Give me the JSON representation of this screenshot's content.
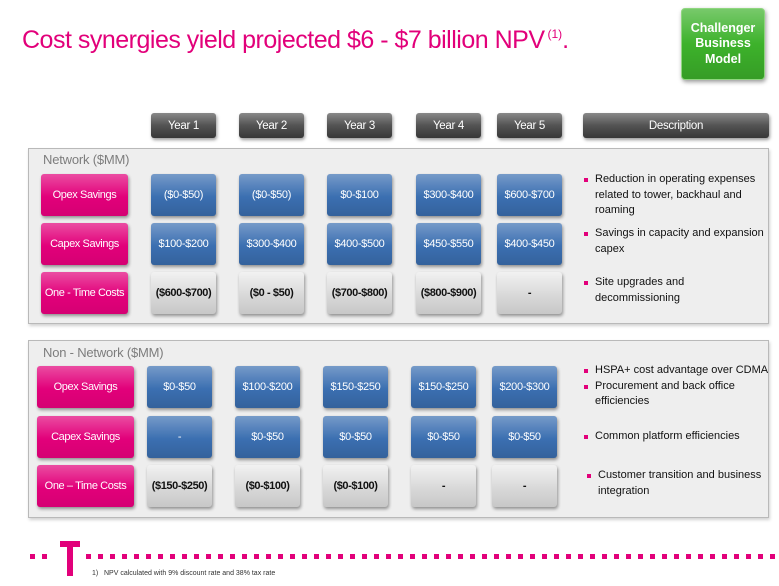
{
  "title": {
    "text": "Cost synergies yield projected $6 - $7 billion NPV",
    "superscript": "(1)",
    "suffix": "."
  },
  "badge": {
    "label": "Challenger Business Model"
  },
  "header": {
    "years": [
      "Year 1",
      "Year 2",
      "Year 3",
      "Year 4",
      "Year 5"
    ],
    "description": "Description"
  },
  "sections": [
    {
      "title": "Network ($MM)",
      "rows": [
        {
          "label": "Opex Savings",
          "values": [
            "($0-$50)",
            "($0-$50)",
            "$0-$100",
            "$300-$400",
            "$600-$700"
          ],
          "description": [
            {
              "lines": [
                "Reduction in operating expenses",
                "related to tower, backhaul and",
                "roaming"
              ]
            }
          ]
        },
        {
          "label": "Capex Savings",
          "values": [
            "$100-$200",
            "$300-$400",
            "$400-$500",
            "$450-$550",
            "$400-$450"
          ],
          "description": [
            {
              "lines": [
                "Savings in capacity and expansion",
                "capex"
              ]
            }
          ]
        },
        {
          "label": "One - Time Costs",
          "values": [
            "($600-$700)",
            "($0 - $50)",
            "($700-$800)",
            "($800-$900)",
            "-"
          ],
          "description": [
            {
              "lines": [
                "Site upgrades and",
                "decommissioning"
              ]
            }
          ]
        }
      ]
    },
    {
      "title": "Non - Network ($MM)",
      "rows": [
        {
          "label": "Opex Savings",
          "values": [
            "$0-$50",
            "$100-$200",
            "$150-$250",
            "$150-$250",
            "$200-$300"
          ],
          "description": [
            {
              "lines": [
                "HSPA+ cost advantage over CDMA"
              ]
            },
            {
              "lines": [
                "Procurement and back office",
                "efficiencies"
              ]
            }
          ]
        },
        {
          "label": "Capex Savings",
          "values": [
            "-",
            "$0-$50",
            "$0-$50",
            "$0-$50",
            "$0-$50"
          ],
          "description": [
            {
              "lines": [
                "Common platform efficiencies"
              ]
            }
          ]
        },
        {
          "label": "One – Time Costs",
          "values": [
            "($150-$250)",
            "($0-$100)",
            "($0-$100)",
            "-",
            "-"
          ],
          "description": [
            {
              "lines": [
                "Customer transition and business",
                "integration"
              ]
            }
          ]
        }
      ]
    }
  ],
  "footnote": {
    "marker": "1)",
    "text": "NPV calculated with 9% discount rate and 38% tax rate"
  },
  "logo": {
    "text": "T"
  },
  "colors": {
    "magenta": "#e2007a",
    "green": "#3db22b",
    "blue": "#3b6fb1",
    "gray": "#d2d2d2",
    "header": "#4a4a4a"
  }
}
